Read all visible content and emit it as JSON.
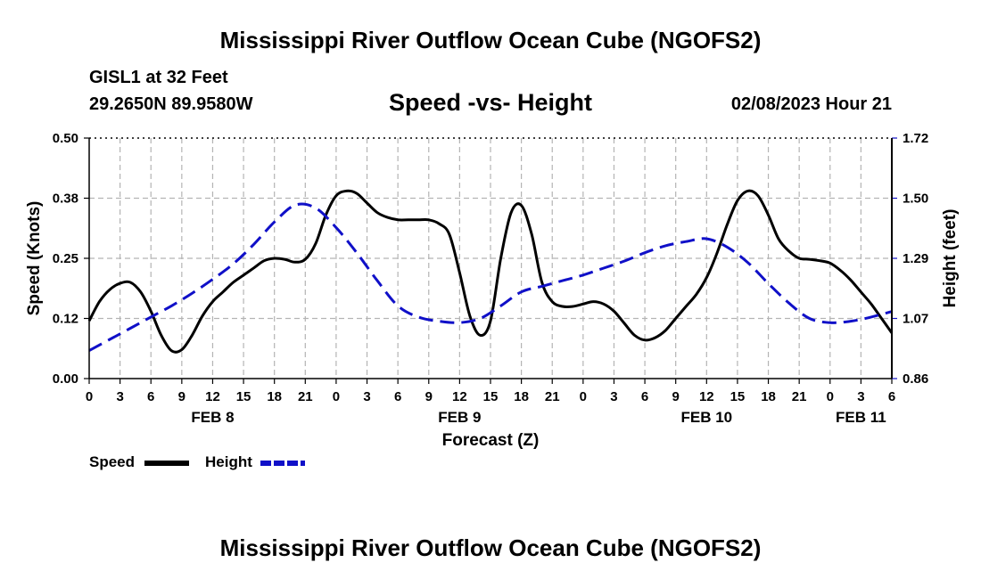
{
  "header": {
    "title": "Mississippi River Outflow Ocean Cube (NGOFS2)",
    "station": "GISL1 at 32 Feet",
    "coords": "29.2650N  89.9580W",
    "chart_title": "Speed -vs- Height",
    "datetime": "02/08/2023 Hour 21",
    "footer_title": "Mississippi River Outflow Ocean Cube (NGOFS2)"
  },
  "colors": {
    "speed": "#000000",
    "height": "#1010c8",
    "grid": "#b4b4b4"
  },
  "legend": {
    "speed_label": "Speed",
    "height_label": "Height"
  },
  "chart_data": {
    "type": "line",
    "title": "Speed -vs- Height",
    "xlabel": "Forecast (Z)",
    "ylabel": "Speed (Knots)",
    "y2label": "Height (feet)",
    "xlim": [
      0,
      78
    ],
    "ylim": [
      0,
      0.5
    ],
    "y2lim": [
      0.86,
      1.72
    ],
    "x_tick_values": [
      0,
      3,
      6,
      9,
      12,
      15,
      18,
      21,
      24,
      27,
      30,
      33,
      36,
      39,
      42,
      45,
      48,
      51,
      54,
      57,
      60,
      63,
      66,
      69,
      72,
      75,
      78
    ],
    "x_tick_labels": [
      "0",
      "3",
      "6",
      "9",
      "12",
      "15",
      "18",
      "21",
      "0",
      "3",
      "6",
      "9",
      "12",
      "15",
      "18",
      "21",
      "0",
      "3",
      "6",
      "9",
      "12",
      "15",
      "18",
      "21",
      "0",
      "3",
      "6"
    ],
    "y_ticks": [
      "0.00",
      "0.12",
      "0.25",
      "0.38",
      "0.50"
    ],
    "y2_ticks": [
      "0.86",
      "1.07",
      "1.29",
      "1.50",
      "1.72"
    ],
    "date_labels": [
      {
        "text": "FEB 8",
        "x": 12
      },
      {
        "text": "FEB 9",
        "x": 36
      },
      {
        "text": "FEB 10",
        "x": 60
      },
      {
        "text": "FEB 11",
        "x": 75
      }
    ],
    "series": [
      {
        "name": "Speed",
        "axis": "left",
        "style": "solid",
        "x": [
          0,
          1,
          2,
          3,
          4,
          5,
          6,
          7,
          8,
          9,
          10,
          11,
          12,
          13,
          14,
          15,
          16,
          17,
          18,
          19,
          20,
          21,
          22,
          23,
          24,
          25,
          26,
          27,
          28,
          29,
          30,
          31,
          32,
          33,
          34,
          35,
          36,
          37,
          38,
          39,
          40,
          41,
          42,
          43,
          44,
          45,
          46,
          47,
          48,
          49,
          50,
          51,
          52,
          53,
          54,
          55,
          56,
          57,
          58,
          59,
          60,
          61,
          62,
          63,
          64,
          65,
          66,
          67,
          68,
          69,
          70,
          71,
          72,
          73,
          74,
          75,
          76,
          77,
          78
        ],
        "values": [
          0.12,
          0.16,
          0.185,
          0.198,
          0.2,
          0.18,
          0.14,
          0.09,
          0.058,
          0.06,
          0.09,
          0.13,
          0.16,
          0.18,
          0.2,
          0.215,
          0.23,
          0.245,
          0.25,
          0.248,
          0.242,
          0.248,
          0.28,
          0.34,
          0.38,
          0.39,
          0.385,
          0.365,
          0.345,
          0.335,
          0.33,
          0.33,
          0.33,
          0.33,
          0.322,
          0.3,
          0.22,
          0.13,
          0.09,
          0.12,
          0.25,
          0.345,
          0.36,
          0.3,
          0.2,
          0.16,
          0.15,
          0.15,
          0.155,
          0.16,
          0.155,
          0.14,
          0.115,
          0.09,
          0.08,
          0.085,
          0.1,
          0.125,
          0.15,
          0.175,
          0.21,
          0.26,
          0.32,
          0.37,
          0.39,
          0.38,
          0.34,
          0.29,
          0.265,
          0.25,
          0.248,
          0.245,
          0.24,
          0.225,
          0.205,
          0.18,
          0.155,
          0.125,
          0.095
        ]
      },
      {
        "name": "Height",
        "axis": "right",
        "style": "dashed",
        "x": [
          0,
          2,
          4,
          6,
          8,
          10,
          12,
          14,
          16,
          18,
          20,
          22,
          24,
          26,
          28,
          30,
          32,
          34,
          36,
          38,
          40,
          42,
          44,
          46,
          48,
          50,
          52,
          54,
          56,
          58,
          60,
          62,
          64,
          66,
          68,
          70,
          72,
          74,
          76,
          78
        ],
        "values": [
          0.96,
          1.0,
          1.04,
          1.08,
          1.12,
          1.165,
          1.215,
          1.27,
          1.34,
          1.42,
          1.48,
          1.47,
          1.4,
          1.31,
          1.21,
          1.12,
          1.08,
          1.065,
          1.06,
          1.075,
          1.12,
          1.17,
          1.19,
          1.21,
          1.23,
          1.255,
          1.28,
          1.31,
          1.335,
          1.35,
          1.36,
          1.33,
          1.275,
          1.2,
          1.13,
          1.075,
          1.06,
          1.065,
          1.08,
          1.1
        ]
      }
    ]
  }
}
